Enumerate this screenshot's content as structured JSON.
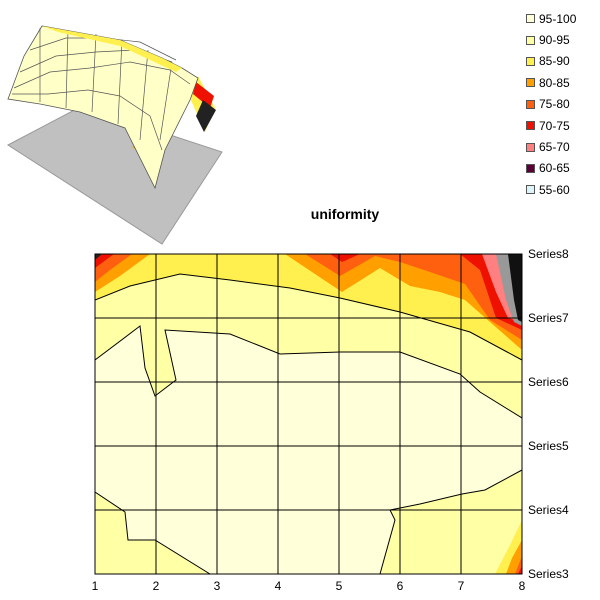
{
  "chart_data": {
    "type": "contour",
    "title": "uniformity",
    "x": [
      1,
      2,
      3,
      4,
      5,
      6,
      7,
      8
    ],
    "series_labels": [
      "Series3",
      "Series4",
      "Series5",
      "Series6",
      "Series7",
      "Series8"
    ],
    "legend": [
      {
        "label": "95-100",
        "color": "#FFFFD9"
      },
      {
        "label": "90-95",
        "color": "#FFFFA6"
      },
      {
        "label": "85-90",
        "color": "#FFF050"
      },
      {
        "label": "80-85",
        "color": "#FFA000"
      },
      {
        "label": "75-80",
        "color": "#FF6010"
      },
      {
        "label": "70-75",
        "color": "#EE1100"
      },
      {
        "label": "65-70",
        "color": "#FF8080"
      },
      {
        "label": "60-65",
        "color": "#5A0038"
      },
      {
        "label": "55-60",
        "color": "#DDF4FA"
      }
    ],
    "legend_position": "top-right",
    "grid": true
  }
}
